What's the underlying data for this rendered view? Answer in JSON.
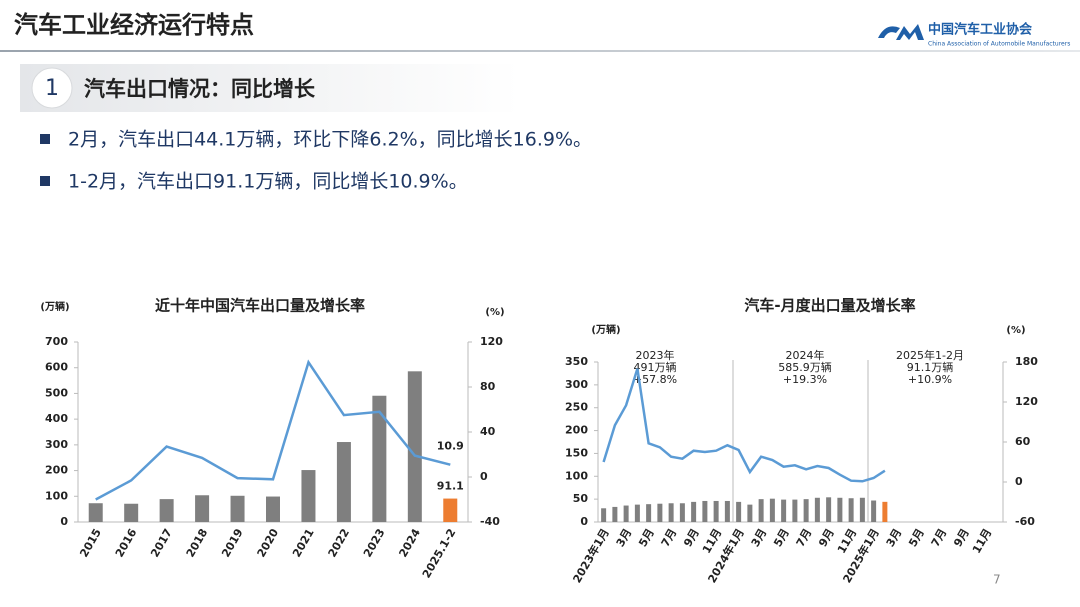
{
  "header": {
    "title": "汽车工业经济运行特点",
    "logo_name": "中国汽车工业协会",
    "logo_english": "China Association of Automobile Manufacturers"
  },
  "section": {
    "number": "1",
    "title": "汽车出口情况：同比增长"
  },
  "bullets": [
    "2月，汽车出口44.1万辆，环比下降6.2%，同比增长16.9%。",
    "1-2月，汽车出口91.1万辆，同比增长10.9%。"
  ],
  "page_number": "7",
  "chart_data": [
    {
      "type": "bar_line",
      "title": "近十年中国汽车出口量及增长率",
      "y_label": "(万辆)",
      "y2_label": "(%)",
      "categories": [
        "2015",
        "2016",
        "2017",
        "2018",
        "2019",
        "2020",
        "2021",
        "2022",
        "2023",
        "2024",
        "2025.1-2"
      ],
      "ylim": [
        0,
        700
      ],
      "yticks": [
        0,
        100,
        200,
        300,
        400,
        500,
        600,
        700
      ],
      "y2lim": [
        -40,
        120
      ],
      "y2ticks": [
        -40,
        0,
        40,
        80,
        120
      ],
      "data_labels": "last",
      "series": [
        {
          "kind": "bar",
          "colors": [
            "#7f7f7f",
            "#7f7f7f",
            "#7f7f7f",
            "#7f7f7f",
            "#7f7f7f",
            "#7f7f7f",
            "#7f7f7f",
            "#7f7f7f",
            "#7f7f7f",
            "#7f7f7f",
            "#ed7d31"
          ],
          "values": [
            73,
            71,
            89,
            104,
            102,
            99,
            202,
            311,
            491,
            586,
            91.1
          ]
        },
        {
          "kind": "line",
          "axis": "y2",
          "color": "#5b9bd5",
          "values": [
            -20,
            -3,
            27,
            17,
            -1,
            -2,
            102,
            55,
            58,
            19,
            10.9
          ]
        }
      ]
    },
    {
      "type": "bar_line",
      "title": "汽车-月度出口量及增长率",
      "y_label": "(万辆)",
      "y2_label": "(%)",
      "categories": [
        "2023年1月",
        null,
        "3月",
        null,
        "5月",
        null,
        "7月",
        null,
        "9月",
        null,
        "11月",
        null,
        "2024年1月",
        null,
        "3月",
        null,
        "5月",
        null,
        "7月",
        null,
        "9月",
        null,
        "11月",
        null,
        "2025年1月",
        null,
        "3月",
        null,
        "5月",
        null,
        "7月",
        null,
        "9月",
        null,
        "11月",
        null
      ],
      "ylim": [
        0,
        350
      ],
      "yticks": [
        0,
        50,
        100,
        150,
        200,
        250,
        300,
        350
      ],
      "y2lim": [
        -60,
        180
      ],
      "y2ticks": [
        -60,
        0,
        60,
        120,
        180
      ],
      "annotations": [
        [
          "2023年",
          "491万辆",
          "+57.8%"
        ],
        [
          "2024年",
          "585.9万辆",
          "+19.3%"
        ],
        [
          "2025年1-2月",
          "91.1万辆",
          "+10.9%"
        ]
      ],
      "series": [
        {
          "kind": "bar",
          "colors": [
            "#7f7f7f",
            "#7f7f7f",
            "#7f7f7f",
            "#7f7f7f",
            "#7f7f7f",
            "#7f7f7f",
            "#7f7f7f",
            "#7f7f7f",
            "#7f7f7f",
            "#7f7f7f",
            "#7f7f7f",
            "#7f7f7f",
            "#7f7f7f",
            "#7f7f7f",
            "#7f7f7f",
            "#7f7f7f",
            "#7f7f7f",
            "#7f7f7f",
            "#7f7f7f",
            "#7f7f7f",
            "#7f7f7f",
            "#7f7f7f",
            "#7f7f7f",
            "#7f7f7f",
            "#7f7f7f",
            "#ed7d31",
            "#7f7f7f",
            "#7f7f7f",
            "#7f7f7f",
            "#7f7f7f",
            "#7f7f7f",
            "#7f7f7f",
            "#7f7f7f",
            "#7f7f7f",
            "#7f7f7f",
            "#7f7f7f"
          ],
          "values": [
            30,
            33,
            36,
            38,
            39,
            40,
            41,
            41,
            44,
            46,
            46,
            46,
            44,
            38,
            50,
            51,
            49,
            49,
            50,
            53,
            54,
            53,
            52,
            53,
            47,
            44.1,
            null,
            null,
            null,
            null,
            null,
            null,
            null,
            null,
            null,
            null
          ]
        },
        {
          "kind": "line",
          "axis": "y2",
          "color": "#5b9bd5",
          "values": [
            30,
            85,
            115,
            170,
            58,
            52,
            38,
            35,
            47,
            45,
            47,
            55,
            48,
            15,
            38,
            33,
            23,
            25,
            19,
            24,
            21,
            11,
            2,
            1,
            6,
            17,
            null,
            null,
            null,
            null,
            null,
            null,
            null,
            null,
            null,
            null
          ]
        }
      ]
    }
  ]
}
